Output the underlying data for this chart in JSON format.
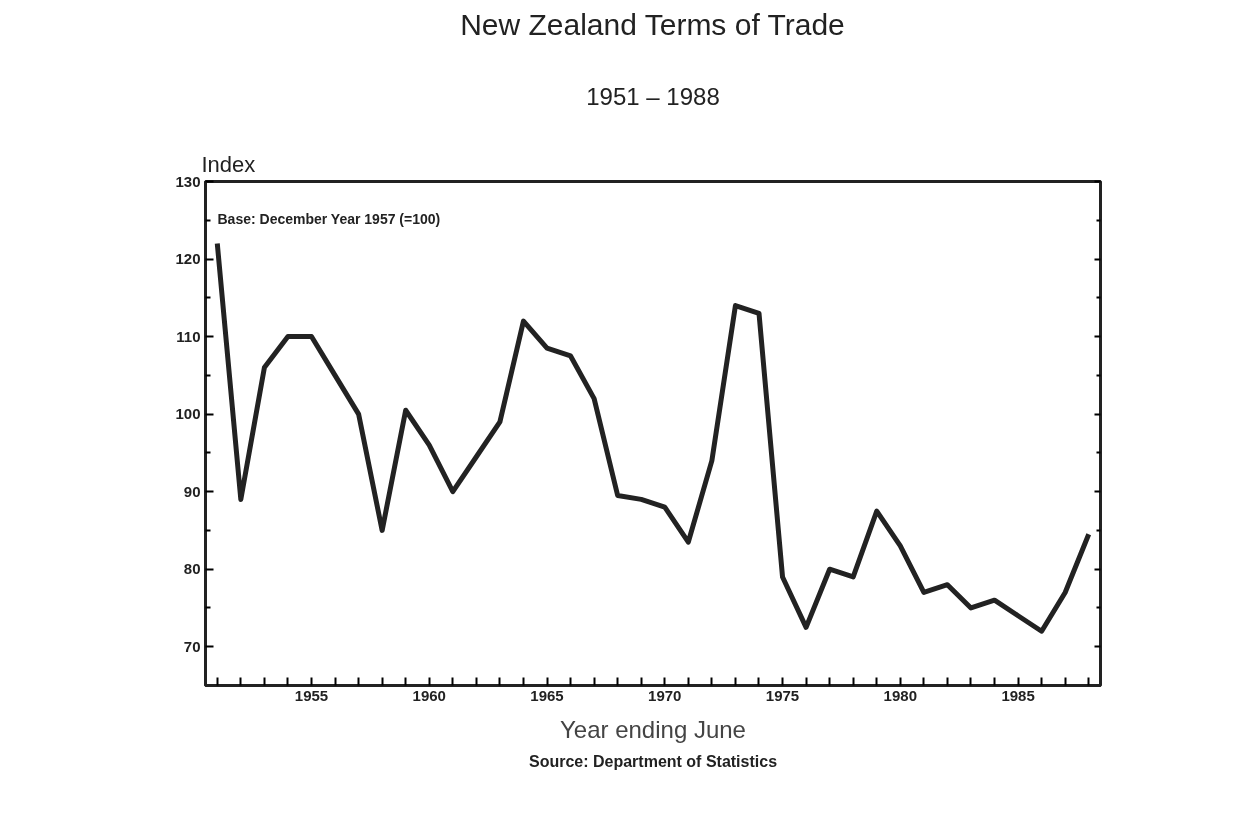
{
  "chart_data": {
    "type": "line",
    "title": "New Zealand Terms of Trade",
    "subtitle": "1951 – 1988",
    "xlabel": "Year ending June",
    "ylabel": "Index",
    "annotations": [
      "Base: December Year 1957 (=100)",
      "Source: Department of Statistics"
    ],
    "x": [
      1951,
      1952,
      1953,
      1954,
      1955,
      1956,
      1957,
      1958,
      1959,
      1960,
      1961,
      1962,
      1963,
      1964,
      1965,
      1966,
      1967,
      1968,
      1969,
      1970,
      1971,
      1972,
      1973,
      1974,
      1975,
      1976,
      1977,
      1978,
      1979,
      1980,
      1981,
      1982,
      1983,
      1984,
      1985,
      1986,
      1987,
      1988
    ],
    "series": [
      {
        "color": "#222222",
        "values": [
          122,
          89,
          106,
          110,
          110,
          105,
          100,
          85,
          100.5,
          96,
          90,
          94.5,
          99,
          112,
          108.5,
          107.5,
          102,
          89.5,
          89,
          88,
          83.5,
          94,
          114,
          113,
          79,
          72.5,
          80,
          79,
          87.5,
          83,
          77,
          78,
          75,
          76,
          74,
          72,
          77,
          84.5
        ]
      }
    ],
    "xlim": [
      1950.5,
      1988.5
    ],
    "ylim": [
      65,
      130
    ],
    "xticks": [
      {
        "value": 1951,
        "label": null
      },
      {
        "value": 1952,
        "label": null
      },
      {
        "value": 1953,
        "label": null
      },
      {
        "value": 1954,
        "label": null
      },
      1955,
      {
        "value": 1956,
        "label": null
      },
      {
        "value": 1957,
        "label": null
      },
      {
        "value": 1958,
        "label": null
      },
      {
        "value": 1959,
        "label": null
      },
      1960,
      {
        "value": 1961,
        "label": null
      },
      {
        "value": 1962,
        "label": null
      },
      {
        "value": 1963,
        "label": null
      },
      {
        "value": 1964,
        "label": null
      },
      1965,
      {
        "value": 1966,
        "label": null
      },
      {
        "value": 1967,
        "label": null
      },
      {
        "value": 1968,
        "label": null
      },
      {
        "value": 1969,
        "label": null
      },
      1970,
      {
        "value": 1971,
        "label": null
      },
      {
        "value": 1972,
        "label": null
      },
      {
        "value": 1973,
        "label": null
      },
      {
        "value": 1974,
        "label": null
      },
      1975,
      {
        "value": 1976,
        "label": null
      },
      {
        "value": 1977,
        "label": null
      },
      {
        "value": 1978,
        "label": null
      },
      {
        "value": 1979,
        "label": null
      },
      1980,
      {
        "value": 1981,
        "label": null
      },
      {
        "value": 1982,
        "label": null
      },
      {
        "value": 1983,
        "label": null
      },
      {
        "value": 1984,
        "label": null
      },
      1985,
      {
        "value": 1986,
        "label": null
      },
      {
        "value": 1987,
        "label": null
      },
      {
        "value": 1988,
        "label": null
      }
    ],
    "yticks": [
      70,
      80,
      90,
      100,
      110,
      120,
      130
    ],
    "grid": false,
    "marker": "none",
    "line_style": "solid"
  }
}
